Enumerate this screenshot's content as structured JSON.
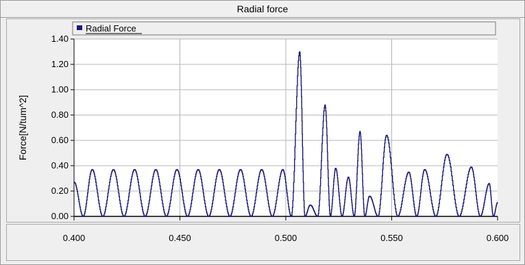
{
  "window": {
    "title": "Radial force"
  },
  "colors": {
    "series": "#1a1a7a",
    "grid": "#b4b4b4",
    "plot_bg": "#ffffff",
    "panel_bg": "#efefef"
  },
  "chart_data": {
    "type": "line",
    "title": "Radial force",
    "xlabel": "",
    "ylabel": "Force[N/tum^2]",
    "xlim": [
      0.4,
      0.6
    ],
    "ylim": [
      0.0,
      1.4
    ],
    "x_ticks": [
      "0.400",
      "0.450",
      "0.500",
      "0.550",
      "0.600"
    ],
    "y_ticks": [
      "0.00",
      "0.20",
      "0.40",
      "0.60",
      "0.80",
      "1.00",
      "1.20",
      "1.40"
    ],
    "grid": true,
    "legend": {
      "entries": [
        "Radial Force"
      ],
      "placement": "top"
    },
    "series": [
      {
        "name": "Radial Force",
        "peaks": [
          {
            "x": 0.4,
            "y": 0.27
          },
          {
            "x": 0.4085,
            "y": 0.37
          },
          {
            "x": 0.4185,
            "y": 0.37
          },
          {
            "x": 0.4285,
            "y": 0.37
          },
          {
            "x": 0.4385,
            "y": 0.37
          },
          {
            "x": 0.4485,
            "y": 0.37
          },
          {
            "x": 0.4585,
            "y": 0.37
          },
          {
            "x": 0.4685,
            "y": 0.37
          },
          {
            "x": 0.4785,
            "y": 0.37
          },
          {
            "x": 0.4885,
            "y": 0.37
          },
          {
            "x": 0.4985,
            "y": 0.37
          },
          {
            "x": 0.5065,
            "y": 1.3
          },
          {
            "x": 0.5115,
            "y": 0.09
          },
          {
            "x": 0.5185,
            "y": 0.88
          },
          {
            "x": 0.5235,
            "y": 0.38
          },
          {
            "x": 0.5295,
            "y": 0.31
          },
          {
            "x": 0.535,
            "y": 0.67
          },
          {
            "x": 0.5395,
            "y": 0.16
          },
          {
            "x": 0.5475,
            "y": 0.64
          },
          {
            "x": 0.558,
            "y": 0.35
          },
          {
            "x": 0.5655,
            "y": 0.37
          },
          {
            "x": 0.576,
            "y": 0.49
          },
          {
            "x": 0.5875,
            "y": 0.39
          },
          {
            "x": 0.596,
            "y": 0.26
          },
          {
            "x": 0.6,
            "y": 0.11
          }
        ]
      }
    ]
  }
}
